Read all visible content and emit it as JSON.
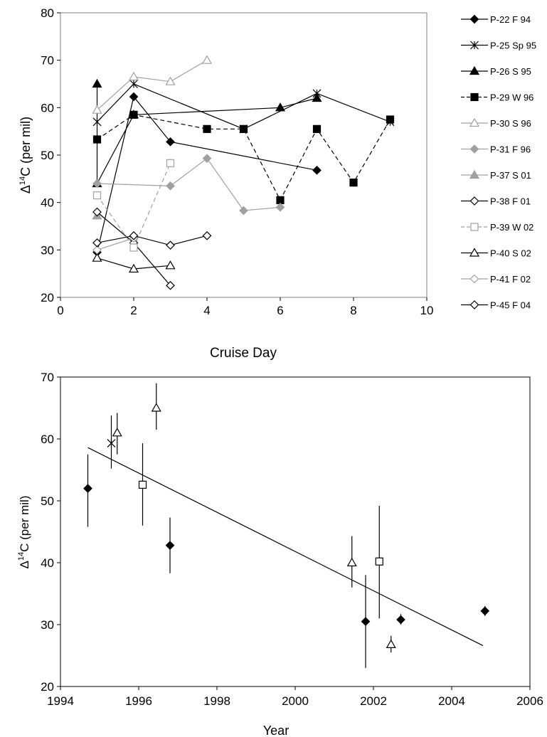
{
  "colors": {
    "black": "#000000",
    "gray": "#a0a0a0",
    "axis": "#808080",
    "trend": "#000000"
  },
  "chart_data": [
    {
      "type": "line",
      "xlabel": "Cruise Day",
      "ylabel_main": "Δ",
      "ylabel_sup": "14",
      "ylabel_rest": "C  (per mil)",
      "xlim": [
        0,
        10
      ],
      "ylim": [
        20,
        80
      ],
      "x_ticks": [
        0,
        2,
        4,
        6,
        8,
        10
      ],
      "y_ticks": [
        20,
        30,
        40,
        50,
        60,
        70,
        80
      ],
      "grid": false,
      "legend_placement": "right",
      "series": [
        {
          "name": "P-22 F 94",
          "color": "#000000",
          "marker": "diamond",
          "filled": true,
          "dashed": false,
          "points": [
            [
              1,
              29.5
            ],
            [
              2,
              62.3
            ],
            [
              3,
              52.8
            ],
            [
              7,
              46.8
            ]
          ]
        },
        {
          "name": "P-25 Sp 95",
          "color": "#000000",
          "marker": "star",
          "filled": false,
          "dashed": false,
          "points": [
            [
              1,
              57
            ],
            [
              2,
              65
            ],
            [
              5,
              55.5
            ],
            [
              7,
              63
            ],
            [
              9,
              57
            ]
          ]
        },
        {
          "name": "P-26 S 95",
          "color": "#000000",
          "marker": "triangle",
          "filled": true,
          "dashed": false,
          "points": [
            [
              1,
              65
            ],
            [
              1,
              44
            ],
            [
              2,
              58.5
            ],
            [
              6,
              60
            ],
            [
              7,
              62
            ]
          ]
        },
        {
          "name": "P-29 W 96",
          "color": "#000000",
          "marker": "square",
          "filled": true,
          "dashed": true,
          "points": [
            [
              1,
              53.3
            ],
            [
              2,
              58.5
            ],
            [
              4,
              55.5
            ],
            [
              5,
              55.5
            ],
            [
              6,
              40.5
            ],
            [
              7,
              55.5
            ],
            [
              8,
              44.2
            ],
            [
              9,
              57.5
            ]
          ]
        },
        {
          "name": "P-30 S 96",
          "color": "#a0a0a0",
          "marker": "triangle",
          "filled": false,
          "dashed": false,
          "points": [
            [
              1,
              59.5
            ],
            [
              2,
              66.5
            ],
            [
              3,
              65.5
            ],
            [
              4,
              70
            ]
          ]
        },
        {
          "name": "P-31 F 96",
          "color": "#a0a0a0",
          "marker": "diamond",
          "filled": true,
          "dashed": false,
          "points": [
            [
              1,
              44
            ],
            [
              3,
              43.5
            ],
            [
              4,
              49.3
            ],
            [
              5,
              38.3
            ],
            [
              6,
              39
            ]
          ]
        },
        {
          "name": "P-37 S 01",
          "color": "#a0a0a0",
          "marker": "triangle",
          "filled": true,
          "dashed": false,
          "points": [
            [
              1,
              37.2
            ]
          ]
        },
        {
          "name": "P-38 F 01",
          "color": "#000000",
          "marker": "diamond",
          "filled": false,
          "dashed": false,
          "points": [
            [
              1,
              38
            ],
            [
              2,
              31.5
            ],
            [
              3,
              22.5
            ]
          ]
        },
        {
          "name": "P-39 W 02",
          "color": "#a0a0a0",
          "marker": "square",
          "filled": false,
          "dashed": true,
          "points": [
            [
              1,
              41.5
            ],
            [
              2,
              30.5
            ],
            [
              3,
              48.3
            ]
          ]
        },
        {
          "name": "P-40 S 02",
          "color": "#000000",
          "marker": "triangle",
          "filled": false,
          "dashed": false,
          "points": [
            [
              1,
              28.3
            ],
            [
              2,
              26
            ],
            [
              3,
              26.7
            ]
          ]
        },
        {
          "name": "P-41 F 02",
          "color": "#a0a0a0",
          "marker": "diamond",
          "filled": false,
          "dashed": false,
          "points": [
            [
              1,
              30
            ],
            [
              2,
              32.5
            ]
          ]
        },
        {
          "name": "P-45 F 04",
          "color": "#000000",
          "marker": "diamond",
          "filled": false,
          "dashed": false,
          "points": [
            [
              1,
              31.5
            ],
            [
              2,
              33
            ],
            [
              3,
              31
            ],
            [
              4,
              33
            ]
          ]
        }
      ]
    },
    {
      "type": "scatter",
      "xlabel": "Year",
      "ylabel_main": "Δ",
      "ylabel_sup": "14",
      "ylabel_rest": "C (per mil)",
      "xlim": [
        1994,
        2006
      ],
      "ylim": [
        20,
        70
      ],
      "x_ticks": [
        1994,
        1996,
        1998,
        2000,
        2002,
        2004,
        2006
      ],
      "y_ticks": [
        20,
        30,
        40,
        50,
        60,
        70
      ],
      "grid": false,
      "trend_line": {
        "x": [
          1994.7,
          2004.8
        ],
        "y": [
          58.6,
          26.6
        ]
      },
      "points": [
        {
          "marker": "diamond",
          "filled": true,
          "x": 1994.7,
          "y": 52,
          "err_low": 45.8,
          "err_high": 57.5
        },
        {
          "marker": "star",
          "filled": false,
          "x": 1995.3,
          "y": 59.3,
          "err_low": 55.2,
          "err_high": 63.8
        },
        {
          "marker": "triangle",
          "filled": false,
          "x": 1995.45,
          "y": 61,
          "err_low": 57.5,
          "err_high": 64.2
        },
        {
          "marker": "square",
          "filled": false,
          "x": 1996.1,
          "y": 52.6,
          "err_low": 46,
          "err_high": 59.3
        },
        {
          "marker": "triangle",
          "filled": false,
          "x": 1996.45,
          "y": 65,
          "err_low": 61.5,
          "err_high": 69
        },
        {
          "marker": "diamond",
          "filled": true,
          "x": 1996.8,
          "y": 42.8,
          "err_low": 38.3,
          "err_high": 47.3
        },
        {
          "marker": "triangle",
          "filled": false,
          "x": 2001.45,
          "y": 40,
          "err_low": 36,
          "err_high": 44.3
        },
        {
          "marker": "diamond",
          "filled": true,
          "x": 2001.8,
          "y": 30.5,
          "err_low": 23,
          "err_high": 38
        },
        {
          "marker": "square",
          "filled": false,
          "x": 2002.15,
          "y": 40.2,
          "err_low": 31,
          "err_high": 49.2
        },
        {
          "marker": "triangle",
          "filled": false,
          "x": 2002.45,
          "y": 26.8,
          "err_low": 25.5,
          "err_high": 28.2
        },
        {
          "marker": "diamond",
          "filled": true,
          "x": 2002.7,
          "y": 30.8,
          "err_low": 30,
          "err_high": 31.7
        },
        {
          "marker": "diamond",
          "filled": true,
          "x": 2004.85,
          "y": 32.2,
          "err_low": 31.4,
          "err_high": 33
        }
      ]
    }
  ]
}
